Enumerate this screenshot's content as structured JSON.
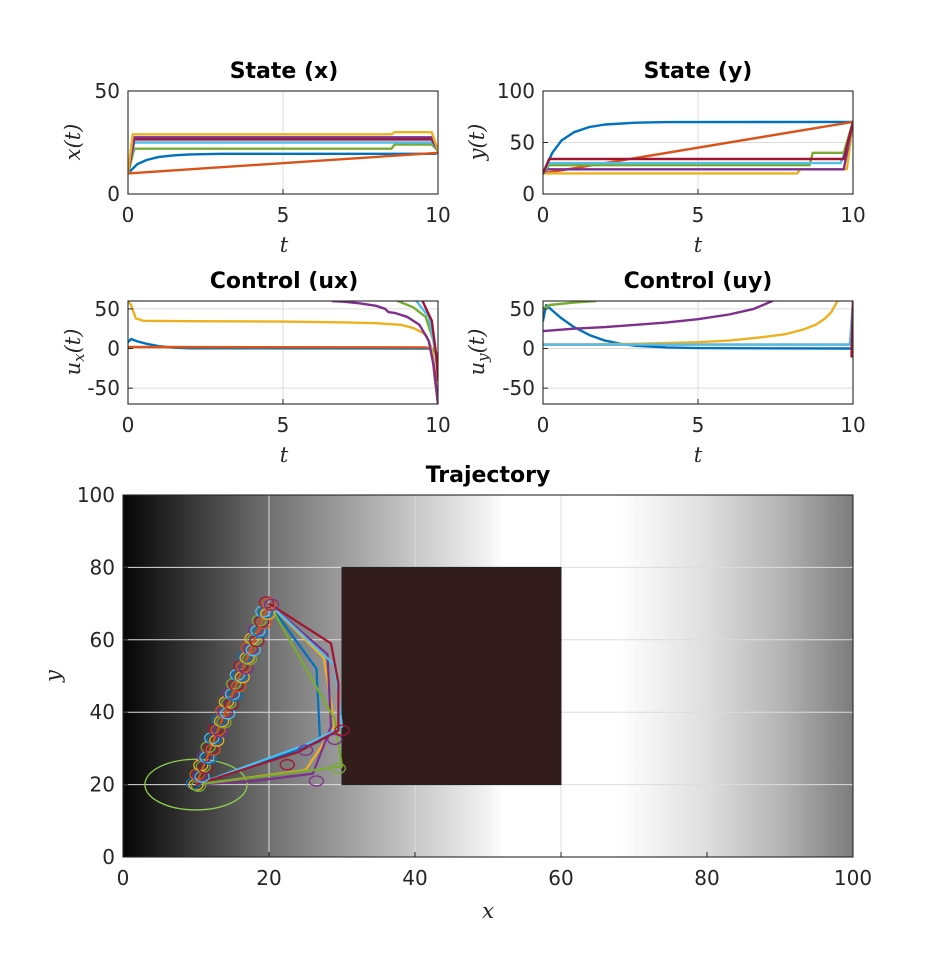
{
  "colors": {
    "palette": [
      "#0072BD",
      "#D95319",
      "#EDB120",
      "#7E2F8E",
      "#77AC30",
      "#4DBEEE",
      "#A2142F"
    ],
    "obstacle": "#321c1c",
    "start_circle": "#8fd14f",
    "axis": "#262626",
    "grid": "#dcdcdc"
  },
  "chart_data": [
    {
      "id": "state_x",
      "type": "line",
      "title": "State (x)",
      "xlabel": "t",
      "ylabel": "x(t)",
      "xlim": [
        0,
        10
      ],
      "ylim": [
        0,
        50
      ],
      "xticks": [
        0,
        5,
        10
      ],
      "yticks": [
        0,
        50
      ],
      "grid": true,
      "series": [
        {
          "color": "#0072BD",
          "points": [
            [
              0,
              10
            ],
            [
              0.3,
              14.5
            ],
            [
              0.6,
              16.5
            ],
            [
              1,
              18
            ],
            [
              1.5,
              18.8
            ],
            [
              2,
              19.2
            ],
            [
              3,
              19.5
            ],
            [
              9.9,
              19.5
            ],
            [
              10,
              20
            ]
          ]
        },
        {
          "color": "#D95319",
          "points": [
            [
              0,
              10
            ],
            [
              10,
              20
            ]
          ]
        },
        {
          "color": "#77AC30",
          "points": [
            [
              0,
              10
            ],
            [
              0.2,
              22
            ],
            [
              8.5,
              22
            ],
            [
              8.6,
              24
            ],
            [
              9.8,
              24
            ],
            [
              10,
              21
            ]
          ]
        },
        {
          "color": "#4DBEEE",
          "points": [
            [
              0,
              10
            ],
            [
              0.2,
              25
            ],
            [
              9.8,
              25
            ],
            [
              10,
              21
            ]
          ]
        },
        {
          "color": "#A2142F",
          "points": [
            [
              0,
              10
            ],
            [
              0.2,
              26.5
            ],
            [
              9.8,
              26.5
            ],
            [
              10,
              21
            ]
          ]
        },
        {
          "color": "#7E2F8E",
          "points": [
            [
              0,
              10
            ],
            [
              0.2,
              27.5
            ],
            [
              9.8,
              27.5
            ],
            [
              10,
              21
            ]
          ]
        },
        {
          "color": "#EDB120",
          "points": [
            [
              0,
              10
            ],
            [
              0.15,
              29
            ],
            [
              8.5,
              29
            ],
            [
              8.6,
              30
            ],
            [
              9.8,
              30
            ],
            [
              10,
              21
            ]
          ]
        }
      ]
    },
    {
      "id": "state_y",
      "type": "line",
      "title": "State (y)",
      "xlabel": "t",
      "ylabel": "y(t)",
      "xlim": [
        0,
        10
      ],
      "ylim": [
        0,
        100
      ],
      "xticks": [
        0,
        5,
        10
      ],
      "yticks": [
        0,
        50,
        100
      ],
      "grid": true,
      "series": [
        {
          "color": "#0072BD",
          "points": [
            [
              0,
              20
            ],
            [
              0.3,
              40
            ],
            [
              0.6,
              52
            ],
            [
              1,
              60
            ],
            [
              1.5,
              65
            ],
            [
              2,
              67.5
            ],
            [
              3,
              69.2
            ],
            [
              4,
              69.8
            ],
            [
              10,
              70
            ]
          ]
        },
        {
          "color": "#D95319",
          "points": [
            [
              0,
              20
            ],
            [
              10,
              70
            ]
          ]
        },
        {
          "color": "#EDB120",
          "points": [
            [
              0,
              20
            ],
            [
              0.1,
              20
            ],
            [
              8.2,
              20
            ],
            [
              8.3,
              24
            ],
            [
              9.8,
              24
            ],
            [
              10,
              70
            ]
          ]
        },
        {
          "color": "#7E2F8E",
          "points": [
            [
              0,
              20
            ],
            [
              0.15,
              24
            ],
            [
              9.7,
              24
            ],
            [
              10,
              70
            ]
          ]
        },
        {
          "color": "#77AC30",
          "points": [
            [
              0,
              20
            ],
            [
              0.2,
              28
            ],
            [
              8.6,
              28
            ],
            [
              8.7,
              40
            ],
            [
              9.7,
              40
            ],
            [
              10,
              70
            ]
          ]
        },
        {
          "color": "#4DBEEE",
          "points": [
            [
              0,
              20
            ],
            [
              0.2,
              30
            ],
            [
              9.6,
              30
            ],
            [
              9.8,
              45
            ],
            [
              10,
              70
            ]
          ]
        },
        {
          "color": "#A2142F",
          "points": [
            [
              0,
              20
            ],
            [
              0.2,
              34
            ],
            [
              9.7,
              34
            ],
            [
              10,
              70
            ]
          ]
        }
      ]
    },
    {
      "id": "control_ux",
      "type": "line",
      "title": "Control (ux)",
      "xlabel": "t",
      "ylabel": "u_x(t)",
      "xlim": [
        0,
        10
      ],
      "ylim": [
        -70,
        60
      ],
      "xticks": [
        0,
        5,
        10
      ],
      "yticks": [
        -50,
        0,
        50
      ],
      "grid": true,
      "series": [
        {
          "color": "#0072BD",
          "points": [
            [
              0,
              8
            ],
            [
              0.1,
              12
            ],
            [
              0.3,
              9
            ],
            [
              0.6,
              6
            ],
            [
              1,
              3
            ],
            [
              1.5,
              1
            ],
            [
              2,
              0.3
            ],
            [
              9.8,
              0
            ],
            [
              10,
              -8
            ]
          ]
        },
        {
          "color": "#D95319",
          "points": [
            [
              0,
              2
            ],
            [
              9.6,
              1.5
            ],
            [
              9.8,
              0
            ],
            [
              9.9,
              -30
            ],
            [
              10,
              -70
            ]
          ]
        },
        {
          "color": "#EDB120",
          "points": [
            [
              0,
              60
            ],
            [
              0.1,
              55
            ],
            [
              0.25,
              38
            ],
            [
              0.5,
              35
            ],
            [
              2,
              34.5
            ],
            [
              5,
              34
            ],
            [
              7,
              33
            ],
            [
              8,
              32
            ],
            [
              8.8,
              30
            ],
            [
              9.2,
              26
            ],
            [
              9.6,
              18
            ],
            [
              9.8,
              0
            ],
            [
              9.9,
              -40
            ],
            [
              10,
              -70
            ]
          ]
        },
        {
          "color": "#7E2F8E",
          "points": [
            [
              6.6,
              60
            ],
            [
              7,
              59
            ],
            [
              7.5,
              57
            ],
            [
              8,
              54
            ],
            [
              8.3,
              50
            ],
            [
              8.4,
              46
            ],
            [
              8.6,
              45
            ],
            [
              9,
              40
            ],
            [
              9.4,
              30
            ],
            [
              9.7,
              10
            ],
            [
              9.85,
              -20
            ],
            [
              10,
              -70
            ]
          ]
        },
        {
          "color": "#77AC30",
          "points": [
            [
              8.7,
              60
            ],
            [
              9.2,
              52
            ],
            [
              9.6,
              40
            ],
            [
              9.85,
              10
            ],
            [
              10,
              -30
            ]
          ]
        },
        {
          "color": "#4DBEEE",
          "points": [
            [
              9.3,
              60
            ],
            [
              9.7,
              40
            ],
            [
              9.9,
              0
            ],
            [
              10,
              -30
            ]
          ]
        },
        {
          "color": "#A2142F",
          "points": [
            [
              9.5,
              60
            ],
            [
              9.8,
              35
            ],
            [
              9.95,
              -10
            ],
            [
              10,
              -40
            ]
          ]
        }
      ]
    },
    {
      "id": "control_uy",
      "type": "line",
      "title": "Control (uy)",
      "xlabel": "t",
      "ylabel": "u_y(t)",
      "xlim": [
        0,
        10
      ],
      "ylim": [
        -70,
        60
      ],
      "xticks": [
        0,
        5,
        10
      ],
      "yticks": [
        -50,
        0,
        50
      ],
      "grid": true,
      "series": [
        {
          "color": "#0072BD",
          "points": [
            [
              0,
              35
            ],
            [
              0.1,
              55
            ],
            [
              0.3,
              48
            ],
            [
              0.6,
              38
            ],
            [
              1,
              27
            ],
            [
              1.5,
              17
            ],
            [
              2,
              10
            ],
            [
              2.5,
              6
            ],
            [
              3,
              3.5
            ],
            [
              4,
              1.5
            ],
            [
              5,
              0.6
            ],
            [
              10,
              0
            ]
          ]
        },
        {
          "color": "#D95319",
          "points": [
            [
              0,
              5
            ],
            [
              10,
              5
            ]
          ]
        },
        {
          "color": "#77AC30",
          "points": [
            [
              0,
              50
            ],
            [
              0.2,
              55
            ],
            [
              1,
              58
            ],
            [
              1.7,
              60
            ]
          ]
        },
        {
          "color": "#7E2F8E",
          "points": [
            [
              0,
              22
            ],
            [
              1,
              25
            ],
            [
              2,
              27
            ],
            [
              3,
              30
            ],
            [
              4,
              33
            ],
            [
              5,
              37
            ],
            [
              6,
              43
            ],
            [
              6.8,
              50
            ],
            [
              7.4,
              60
            ]
          ]
        },
        {
          "color": "#EDB120",
          "points": [
            [
              0,
              5
            ],
            [
              1,
              5
            ],
            [
              3,
              6
            ],
            [
              5,
              8
            ],
            [
              6,
              10
            ],
            [
              7,
              14
            ],
            [
              7.8,
              18
            ],
            [
              8.4,
              24
            ],
            [
              8.8,
              30
            ],
            [
              9.1,
              38
            ],
            [
              9.3,
              46
            ],
            [
              9.5,
              60
            ]
          ]
        },
        {
          "color": "#4DBEEE",
          "points": [
            [
              0,
              5
            ],
            [
              9.9,
              5
            ],
            [
              10,
              60
            ]
          ]
        },
        {
          "color": "#A2142F",
          "points": [
            [
              9.95,
              -10
            ],
            [
              10,
              60
            ]
          ]
        }
      ]
    },
    {
      "id": "trajectory",
      "type": "line",
      "title": "Trajectory",
      "xlabel": "x",
      "ylabel": "y",
      "xlim": [
        0,
        100
      ],
      "ylim": [
        0,
        100
      ],
      "xticks": [
        0,
        20,
        40,
        60,
        80,
        100
      ],
      "yticks": [
        0,
        20,
        40,
        60,
        80,
        100
      ],
      "grid": true,
      "background": "grayscale gradient",
      "obstacle": {
        "x": [
          30,
          60
        ],
        "y": [
          20,
          80
        ]
      },
      "start": [
        10,
        20
      ],
      "goal": [
        20,
        70
      ],
      "start_ellipse": {
        "center": [
          10,
          20
        ],
        "rx": 7,
        "ry": 7
      },
      "reference_path": {
        "x": [
          10,
          20
        ],
        "y": [
          20,
          70
        ],
        "markers": 21
      },
      "series": [
        {
          "color": "#D95319",
          "points": [
            [
              10,
              20
            ],
            [
              20,
              70
            ]
          ]
        },
        {
          "color": "#0072BD",
          "points": [
            [
              10,
              20
            ],
            [
              19,
              26
            ],
            [
              27,
              32
            ],
            [
              26.5,
              52
            ],
            [
              20,
              70
            ]
          ]
        },
        {
          "color": "#EDB120",
          "points": [
            [
              10,
              20
            ],
            [
              25,
              24
            ],
            [
              29,
              36
            ],
            [
              27.5,
              55
            ],
            [
              20,
              70
            ]
          ]
        },
        {
          "color": "#7E2F8E",
          "points": [
            [
              10,
              20
            ],
            [
              18,
              21
            ],
            [
              26,
              23
            ],
            [
              28.5,
              36
            ],
            [
              28,
              56
            ],
            [
              20,
              70
            ]
          ]
        },
        {
          "color": "#77AC30",
          "points": [
            [
              10,
              20
            ],
            [
              30,
              25
            ],
            [
              29,
              38
            ],
            [
              20,
              70
            ]
          ]
        },
        {
          "color": "#4DBEEE",
          "points": [
            [
              10,
              20
            ],
            [
              25,
              31
            ],
            [
              30,
              36
            ],
            [
              29,
              53
            ],
            [
              20,
              70
            ]
          ]
        },
        {
          "color": "#A2142F",
          "points": [
            [
              10,
              20
            ],
            [
              24,
              29
            ],
            [
              29.5,
              35
            ],
            [
              29.5,
              48
            ],
            [
              28.5,
              59
            ],
            [
              20,
              70
            ]
          ]
        }
      ],
      "small_markers": [
        {
          "color": "#A2142F",
          "center": [
            22.5,
            25.5
          ]
        },
        {
          "color": "#7E2F8E",
          "center": [
            26.5,
            21
          ]
        },
        {
          "color": "#7E2F8E",
          "center": [
            25,
            29.5
          ]
        },
        {
          "color": "#77AC30",
          "center": [
            29.5,
            24.5
          ]
        },
        {
          "color": "#7E2F8E",
          "center": [
            29,
            32.5
          ]
        },
        {
          "color": "#A2142F",
          "center": [
            30,
            35
          ]
        }
      ]
    }
  ]
}
